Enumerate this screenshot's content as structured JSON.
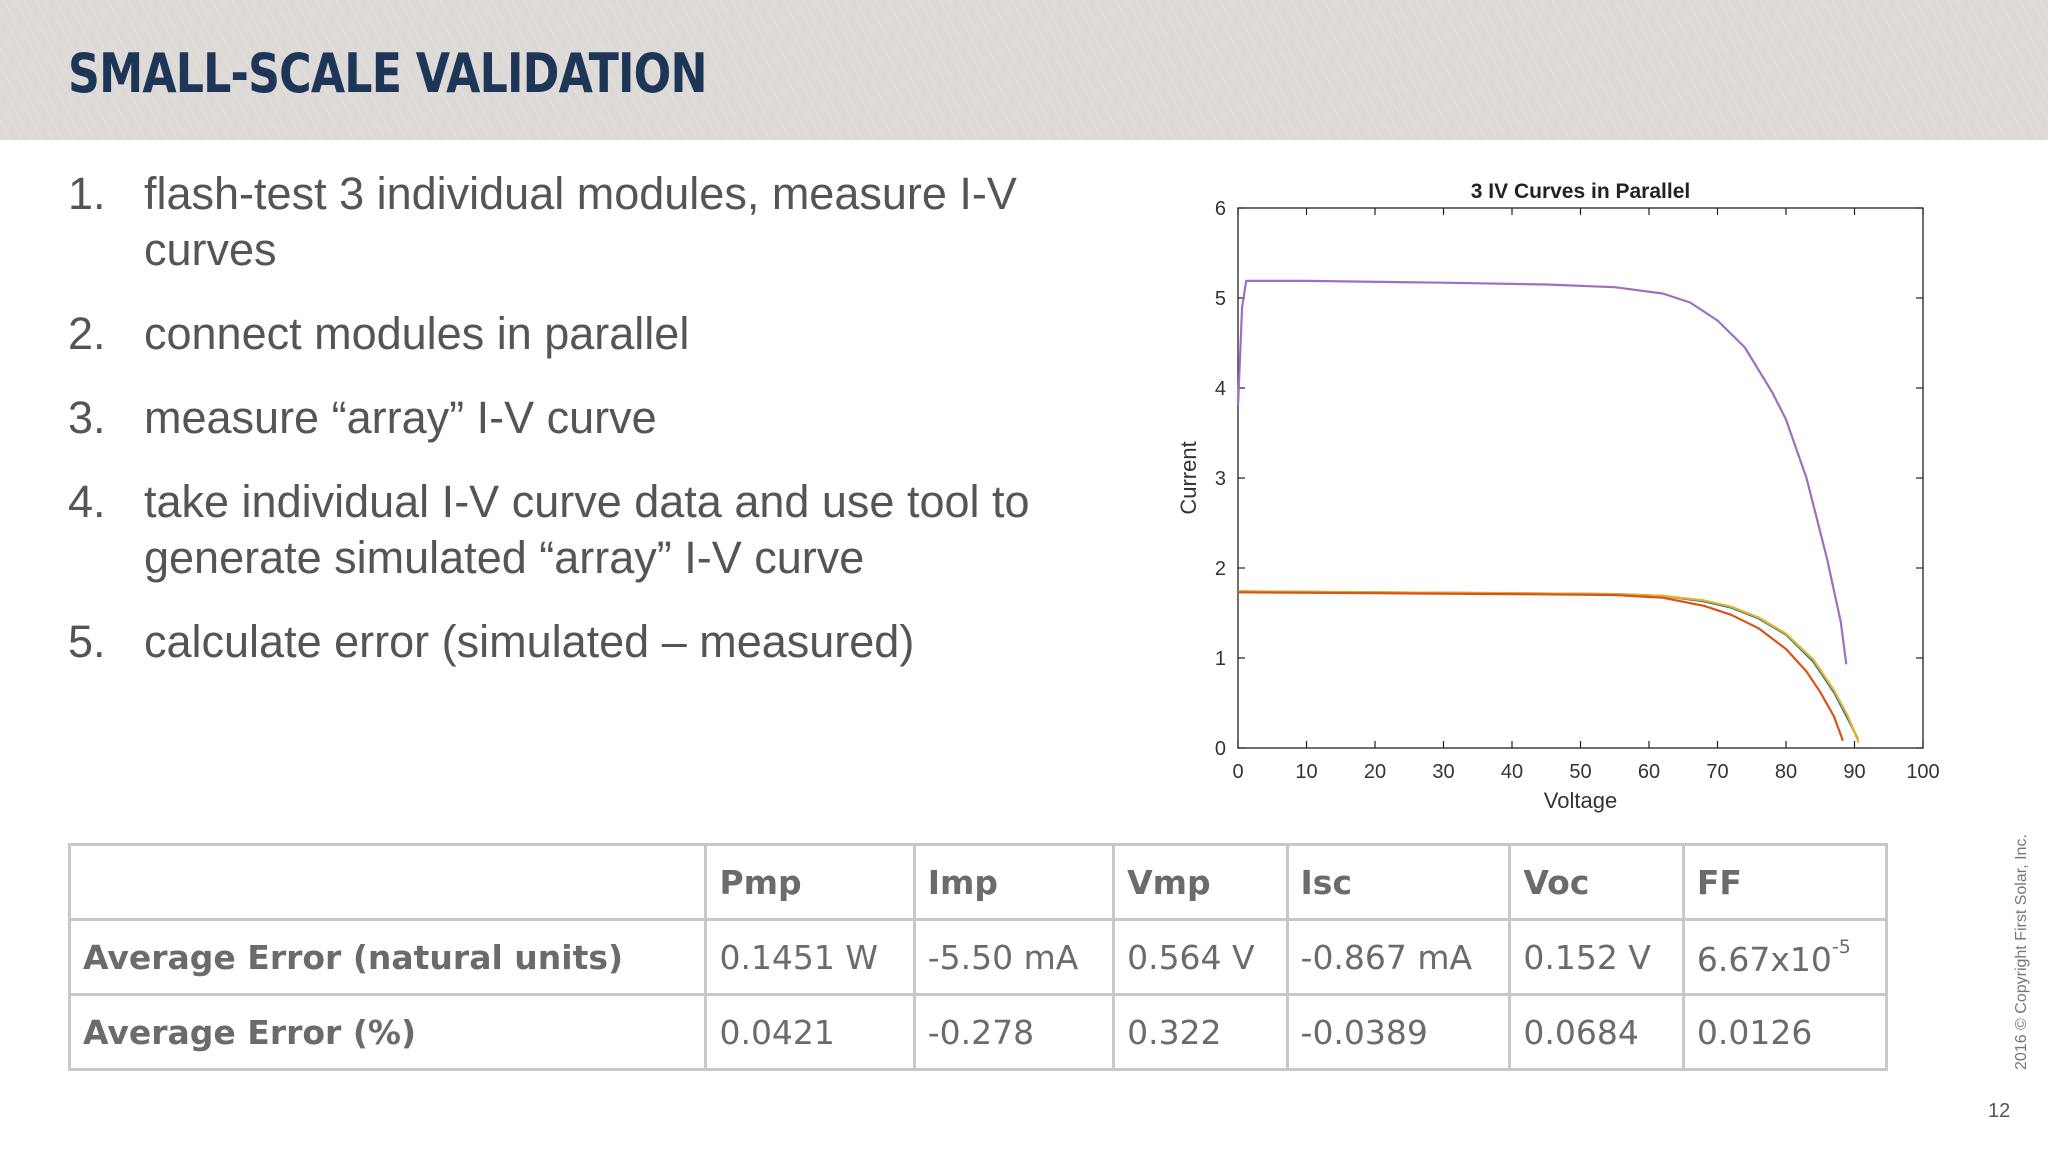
{
  "slide": {
    "title": "SMALL-SCALE VALIDATION",
    "steps": [
      {
        "num": "1.",
        "text": "flash-test 3 individual modules, measure I-V curves"
      },
      {
        "num": "2.",
        "text": "connect modules in parallel"
      },
      {
        "num": "3.",
        "text": "measure “array” I-V curve"
      },
      {
        "num": "4.",
        "text": "take individual I-V curve data and use tool to generate simulated “array” I-V curve"
      },
      {
        "num": "5.",
        "text": "calculate error (simulated – measured)"
      }
    ],
    "copyright": "2016 © Copyright First Solar, Inc.",
    "page_number": "12"
  },
  "table": {
    "headers": [
      "",
      "Pmp",
      "Imp",
      "Vmp",
      "Isc",
      "Voc",
      "FF"
    ],
    "rows": [
      {
        "label": "Average Error (natural units)",
        "cells": [
          "0.1451 W",
          "-5.50 mA",
          "0.564 V",
          "-0.867 mA",
          "0.152 V",
          "6.67x10"
        ],
        "ff_exponent": "-5"
      },
      {
        "label": "Average Error (%)",
        "cells": [
          "0.0421",
          "-0.278",
          "0.322",
          "-0.0389",
          "0.0684",
          "0.0126"
        ]
      }
    ]
  },
  "chart_data": {
    "type": "line",
    "title": "3 IV Curves in Parallel",
    "xlabel": "Voltage",
    "ylabel": "Current",
    "xlim": [
      0,
      100
    ],
    "ylim": [
      0,
      6
    ],
    "xticks": [
      0,
      10,
      20,
      30,
      40,
      50,
      60,
      70,
      80,
      90,
      100
    ],
    "yticks": [
      0,
      1,
      2,
      3,
      4,
      5,
      6
    ],
    "grid": false,
    "legend": "none",
    "series": [
      {
        "color": "#0072bd",
        "points": [
          [
            0,
            1.74
          ],
          [
            20,
            1.73
          ],
          [
            40,
            1.72
          ],
          [
            55,
            1.71
          ],
          [
            62,
            1.69
          ],
          [
            68,
            1.63
          ],
          [
            72,
            1.56
          ],
          [
            76,
            1.44
          ],
          [
            80,
            1.26
          ],
          [
            84,
            0.96
          ],
          [
            87,
            0.62
          ],
          [
            89,
            0.33
          ],
          [
            90.5,
            0.1
          ]
        ]
      },
      {
        "color": "#edb120",
        "points": [
          [
            0,
            1.74
          ],
          [
            20,
            1.73
          ],
          [
            40,
            1.72
          ],
          [
            55,
            1.71
          ],
          [
            62,
            1.69
          ],
          [
            68,
            1.64
          ],
          [
            72,
            1.57
          ],
          [
            76,
            1.45
          ],
          [
            80,
            1.27
          ],
          [
            84,
            0.98
          ],
          [
            87,
            0.64
          ],
          [
            89,
            0.36
          ],
          [
            90.3,
            0.12
          ],
          [
            90.6,
            0.06
          ]
        ]
      },
      {
        "color": "#d95319",
        "points": [
          [
            0,
            1.73
          ],
          [
            20,
            1.72
          ],
          [
            40,
            1.71
          ],
          [
            55,
            1.7
          ],
          [
            62,
            1.67
          ],
          [
            68,
            1.58
          ],
          [
            72,
            1.48
          ],
          [
            76,
            1.33
          ],
          [
            80,
            1.1
          ],
          [
            83,
            0.85
          ],
          [
            85,
            0.62
          ],
          [
            87,
            0.35
          ],
          [
            88.3,
            0.08
          ]
        ]
      },
      {
        "color": "#9e6fc0",
        "points": [
          [
            0,
            3.8
          ],
          [
            0.6,
            4.9
          ],
          [
            1.2,
            5.19
          ],
          [
            10,
            5.19
          ],
          [
            30,
            5.17
          ],
          [
            45,
            5.15
          ],
          [
            55,
            5.12
          ],
          [
            62,
            5.05
          ],
          [
            66,
            4.95
          ],
          [
            70,
            4.75
          ],
          [
            74,
            4.45
          ],
          [
            78,
            3.95
          ],
          [
            80,
            3.65
          ],
          [
            83,
            3.0
          ],
          [
            86,
            2.1
          ],
          [
            88,
            1.4
          ],
          [
            88.8,
            0.93
          ]
        ]
      }
    ]
  }
}
